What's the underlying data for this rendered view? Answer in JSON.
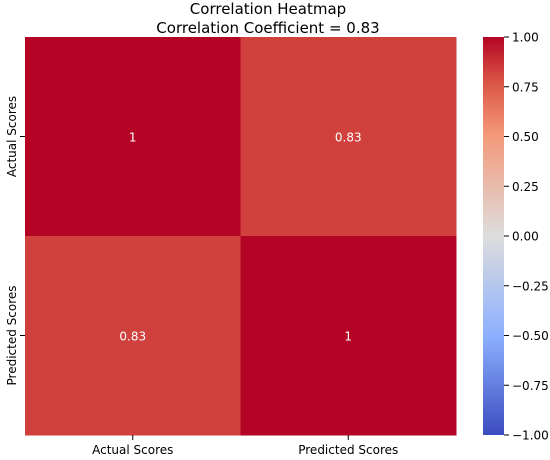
{
  "chart_data": {
    "type": "heatmap",
    "title": "Correlation Heatmap",
    "subtitle": "Correlation Coefficient = 0.83",
    "x_labels": [
      "Actual Scores",
      "Predicted Scores"
    ],
    "y_labels": [
      "Actual Scores",
      "Predicted Scores"
    ],
    "values": [
      [
        1,
        0.83
      ],
      [
        0.83,
        1
      ]
    ],
    "cell_labels": [
      [
        "1",
        "0.83"
      ],
      [
        "0.83",
        "1"
      ]
    ],
    "vmin": -1.0,
    "vmax": 1.0,
    "colormap": "coolwarm",
    "colorbar_ticks": [
      1.0,
      0.75,
      0.5,
      0.25,
      0.0,
      -0.25,
      -0.5,
      -0.75,
      -1.0
    ],
    "colorbar_tick_labels": [
      "1.00",
      "0.75",
      "0.50",
      "0.25",
      "0.00",
      "−0.25",
      "−0.50",
      "−0.75",
      "−1.00"
    ],
    "colors": {
      "high": "#b40426",
      "mid": "#dddddd",
      "low": "#3b4cc0",
      "high_text": "#ffffff"
    }
  }
}
